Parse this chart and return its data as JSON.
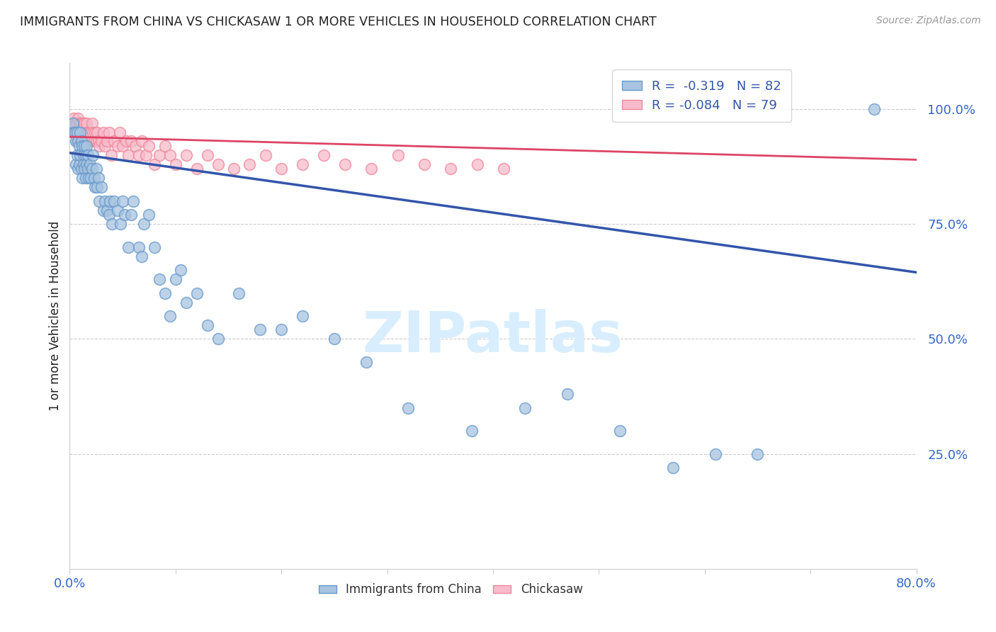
{
  "title": "IMMIGRANTS FROM CHINA VS CHICKASAW 1 OR MORE VEHICLES IN HOUSEHOLD CORRELATION CHART",
  "source": "Source: ZipAtlas.com",
  "ylabel": "1 or more Vehicles in Household",
  "xlim": [
    0,
    0.8
  ],
  "ylim": [
    0,
    1.1
  ],
  "yticks": [
    0.25,
    0.5,
    0.75,
    1.0
  ],
  "ytick_labels": [
    "25.0%",
    "50.0%",
    "75.0%",
    "100.0%"
  ],
  "legend_blue_r": "R =  -0.319",
  "legend_blue_n": "N = 82",
  "legend_pink_r": "R = -0.084",
  "legend_pink_n": "N = 79",
  "blue_scatter_color": "#A8C4E0",
  "blue_scatter_edge": "#6699CC",
  "pink_scatter_color": "#F8BBCC",
  "pink_scatter_edge": "#EE8899",
  "blue_line_color": "#3355AA",
  "pink_line_color": "#DD4466",
  "legend_text_color": "#3355AA",
  "axis_label_color": "#3366CC",
  "title_color": "#222222",
  "grid_color": "#CCCCCC",
  "background_color": "#FFFFFF",
  "watermark_color": "#D8EEFF",
  "trend_blue_x0": 0.0,
  "trend_blue_y0": 0.905,
  "trend_blue_x1": 0.8,
  "trend_blue_y1": 0.645,
  "trend_pink_x0": 0.0,
  "trend_pink_y0": 0.94,
  "trend_pink_x1": 0.8,
  "trend_pink_y1": 0.89,
  "blue_scatter_x": [
    0.003,
    0.004,
    0.005,
    0.006,
    0.006,
    0.007,
    0.007,
    0.008,
    0.008,
    0.009,
    0.009,
    0.01,
    0.01,
    0.011,
    0.011,
    0.012,
    0.012,
    0.013,
    0.013,
    0.014,
    0.014,
    0.015,
    0.015,
    0.016,
    0.016,
    0.017,
    0.017,
    0.018,
    0.019,
    0.02,
    0.021,
    0.022,
    0.023,
    0.024,
    0.025,
    0.026,
    0.027,
    0.028,
    0.03,
    0.032,
    0.033,
    0.035,
    0.037,
    0.038,
    0.04,
    0.042,
    0.045,
    0.048,
    0.05,
    0.052,
    0.055,
    0.058,
    0.06,
    0.065,
    0.068,
    0.07,
    0.075,
    0.08,
    0.085,
    0.09,
    0.095,
    0.1,
    0.105,
    0.11,
    0.12,
    0.13,
    0.14,
    0.16,
    0.18,
    0.2,
    0.22,
    0.25,
    0.28,
    0.32,
    0.38,
    0.43,
    0.47,
    0.52,
    0.57,
    0.61,
    0.65,
    0.76
  ],
  "blue_scatter_y": [
    0.97,
    0.95,
    0.95,
    0.93,
    0.88,
    0.95,
    0.9,
    0.93,
    0.87,
    0.92,
    0.88,
    0.95,
    0.9,
    0.93,
    0.87,
    0.92,
    0.85,
    0.9,
    0.88,
    0.92,
    0.87,
    0.9,
    0.85,
    0.92,
    0.88,
    0.9,
    0.87,
    0.85,
    0.88,
    0.85,
    0.87,
    0.9,
    0.85,
    0.83,
    0.87,
    0.83,
    0.85,
    0.8,
    0.83,
    0.78,
    0.8,
    0.78,
    0.77,
    0.8,
    0.75,
    0.8,
    0.78,
    0.75,
    0.8,
    0.77,
    0.7,
    0.77,
    0.8,
    0.7,
    0.68,
    0.75,
    0.77,
    0.7,
    0.63,
    0.6,
    0.55,
    0.63,
    0.65,
    0.58,
    0.6,
    0.53,
    0.5,
    0.6,
    0.52,
    0.52,
    0.55,
    0.5,
    0.45,
    0.35,
    0.3,
    0.35,
    0.38,
    0.3,
    0.22,
    0.25,
    0.25,
    1.0
  ],
  "pink_scatter_x": [
    0.002,
    0.003,
    0.004,
    0.004,
    0.005,
    0.005,
    0.006,
    0.006,
    0.007,
    0.007,
    0.008,
    0.008,
    0.009,
    0.009,
    0.01,
    0.01,
    0.011,
    0.012,
    0.012,
    0.013,
    0.013,
    0.014,
    0.015,
    0.015,
    0.016,
    0.016,
    0.017,
    0.018,
    0.018,
    0.019,
    0.02,
    0.021,
    0.022,
    0.023,
    0.024,
    0.025,
    0.026,
    0.027,
    0.028,
    0.03,
    0.032,
    0.033,
    0.035,
    0.037,
    0.039,
    0.042,
    0.045,
    0.047,
    0.05,
    0.053,
    0.055,
    0.058,
    0.062,
    0.065,
    0.068,
    0.072,
    0.075,
    0.08,
    0.085,
    0.09,
    0.095,
    0.1,
    0.11,
    0.12,
    0.13,
    0.14,
    0.155,
    0.17,
    0.185,
    0.2,
    0.22,
    0.24,
    0.26,
    0.285,
    0.31,
    0.335,
    0.36,
    0.385,
    0.41
  ],
  "pink_scatter_y": [
    0.97,
    0.97,
    0.95,
    0.98,
    0.97,
    0.95,
    0.97,
    0.95,
    0.97,
    0.93,
    0.95,
    0.98,
    0.97,
    0.93,
    0.97,
    0.95,
    0.97,
    0.95,
    0.93,
    0.97,
    0.95,
    0.97,
    0.95,
    0.93,
    0.97,
    0.95,
    0.93,
    0.95,
    0.93,
    0.95,
    0.95,
    0.97,
    0.95,
    0.93,
    0.95,
    0.93,
    0.95,
    0.93,
    0.92,
    0.93,
    0.95,
    0.92,
    0.93,
    0.95,
    0.9,
    0.93,
    0.92,
    0.95,
    0.92,
    0.93,
    0.9,
    0.93,
    0.92,
    0.9,
    0.93,
    0.9,
    0.92,
    0.88,
    0.9,
    0.92,
    0.9,
    0.88,
    0.9,
    0.87,
    0.9,
    0.88,
    0.87,
    0.88,
    0.9,
    0.87,
    0.88,
    0.9,
    0.88,
    0.87,
    0.9,
    0.88,
    0.87,
    0.88,
    0.87
  ]
}
